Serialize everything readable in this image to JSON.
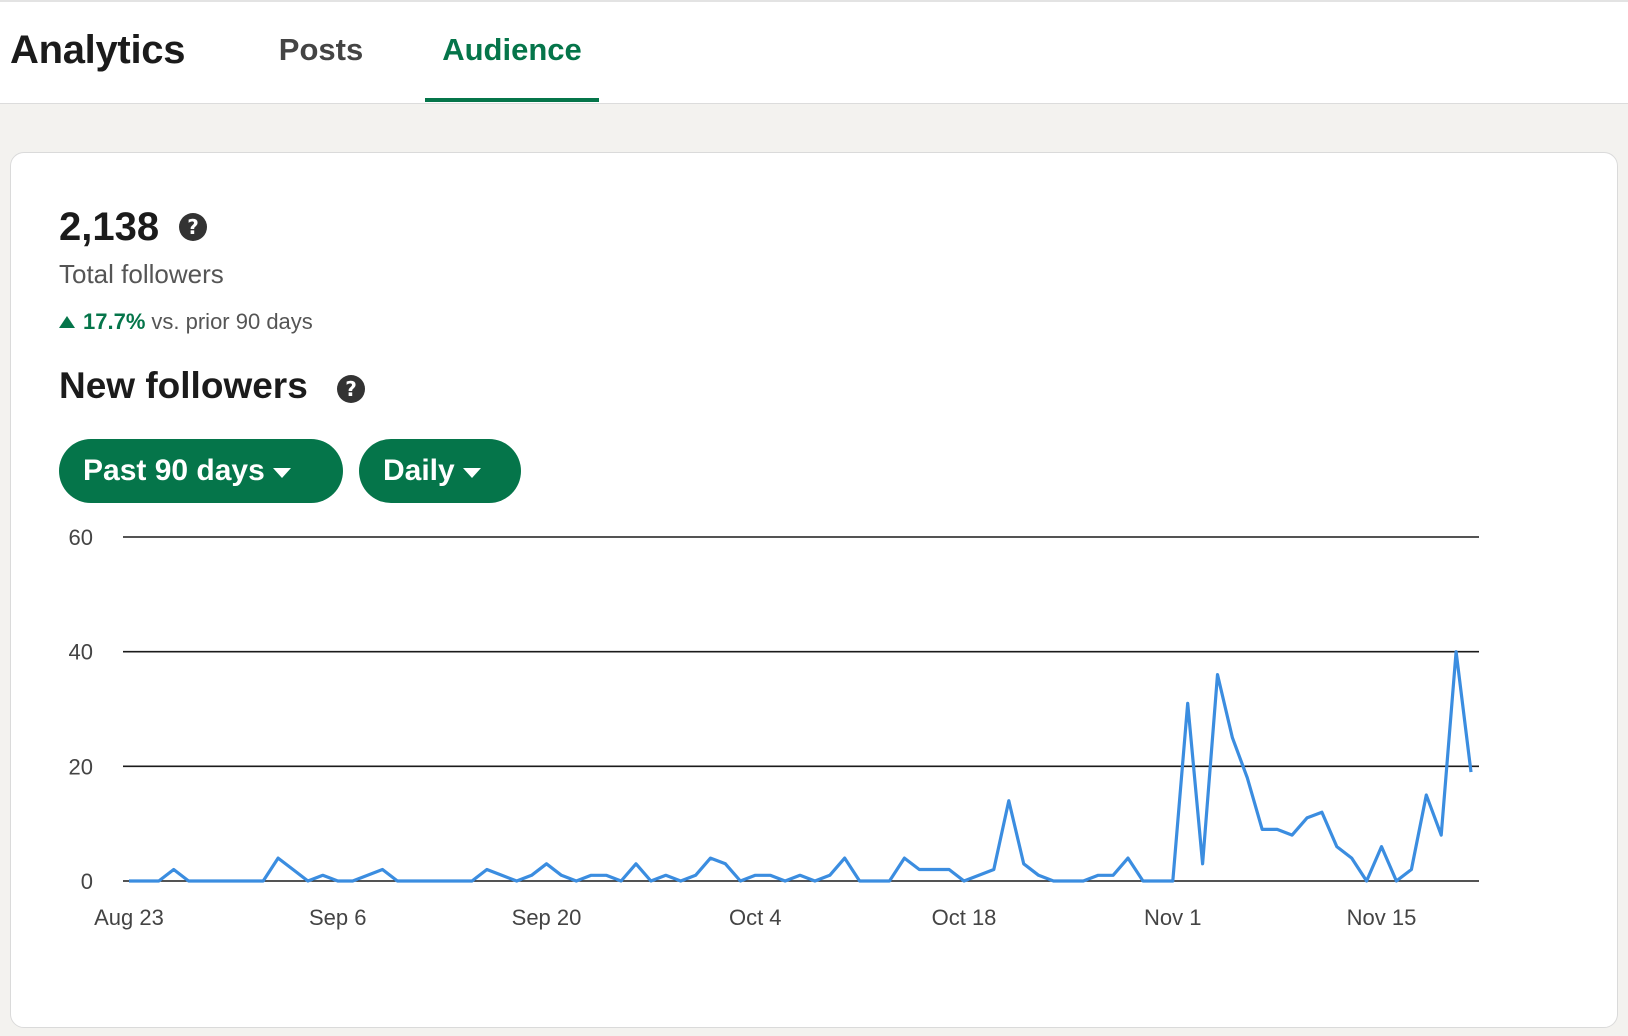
{
  "header": {
    "title": "Analytics",
    "tabs": [
      {
        "label": "Posts",
        "active": false
      },
      {
        "label": "Audience",
        "active": true
      }
    ]
  },
  "summary": {
    "total_value": "2,138",
    "total_label": "Total followers",
    "change_pct": "17.7%",
    "change_text": "vs. prior 90 days"
  },
  "new_followers": {
    "title": "New followers",
    "range_label": "Past 90 days",
    "frequency_label": "Daily"
  },
  "colors": {
    "accent": "#05754a",
    "line": "#3b8de0"
  },
  "chart_data": {
    "type": "line",
    "title": "",
    "xlabel": "",
    "ylabel": "",
    "ylim": [
      0,
      60
    ],
    "yticks": [
      0,
      20,
      40,
      60
    ],
    "x_tick_labels": [
      "Aug 23",
      "Sep 6",
      "Sep 20",
      "Oct 4",
      "Oct 18",
      "Nov 1",
      "Nov 15"
    ],
    "x_start": "Aug 23",
    "grid": true,
    "series": [
      {
        "values": [
          0,
          0,
          0,
          2,
          0,
          0,
          0,
          0,
          0,
          0,
          4,
          2,
          0,
          1,
          0,
          0,
          1,
          2,
          0,
          0,
          0,
          0,
          0,
          0,
          2,
          1,
          0,
          1,
          3,
          1,
          0,
          1,
          1,
          0,
          3,
          0,
          1,
          0,
          1,
          4,
          3,
          0,
          1,
          1,
          0,
          1,
          0,
          1,
          4,
          0,
          0,
          0,
          4,
          2,
          2,
          2,
          0,
          1,
          2,
          14,
          3,
          1,
          0,
          0,
          0,
          1,
          1,
          4,
          0,
          0,
          0,
          31,
          3,
          36,
          25,
          18,
          9,
          9,
          8,
          11,
          12,
          6,
          4,
          0,
          6,
          0,
          2,
          15,
          8,
          40,
          19
        ]
      }
    ]
  }
}
